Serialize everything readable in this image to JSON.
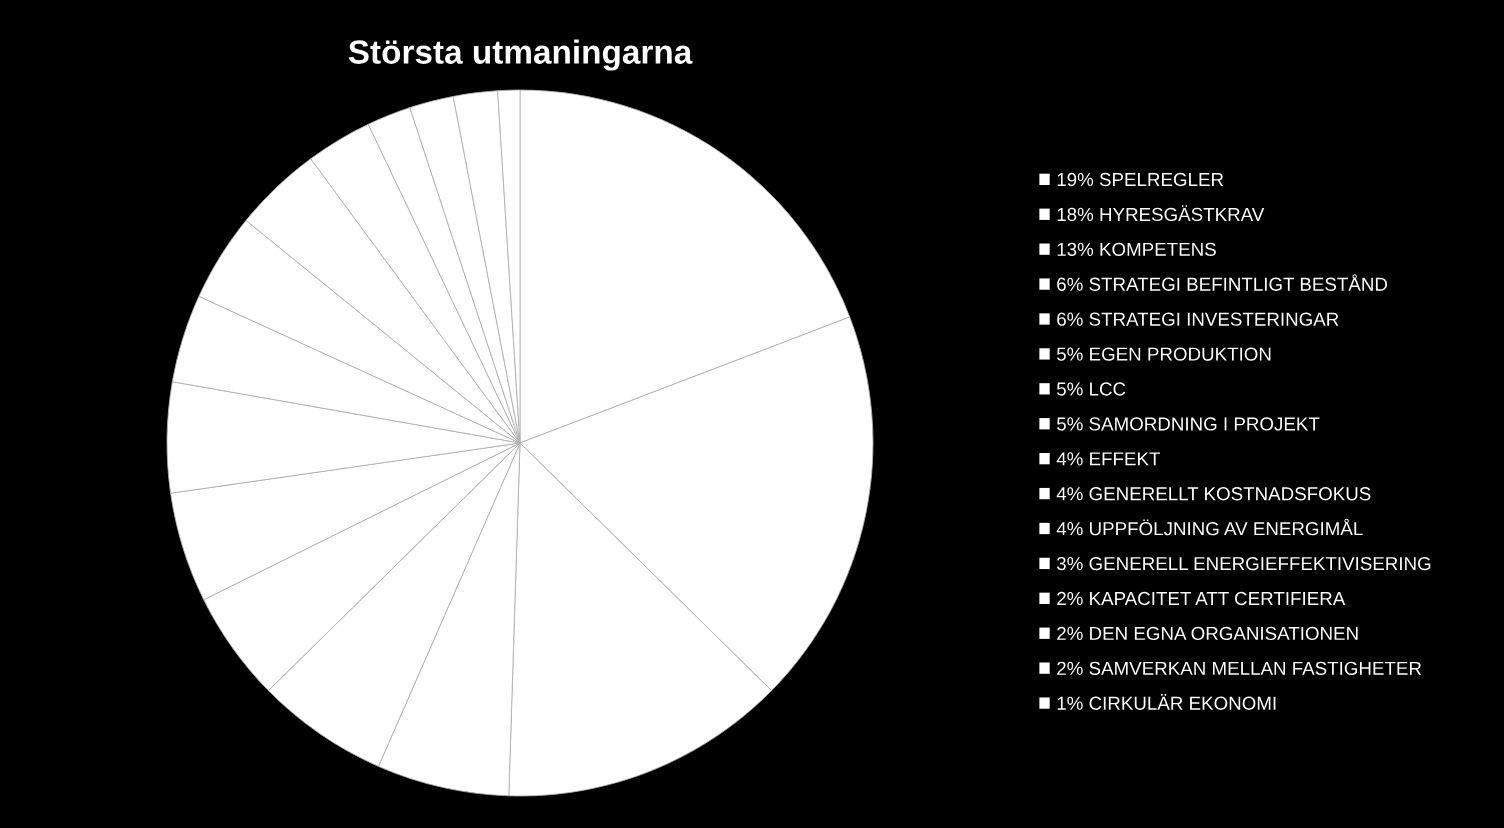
{
  "chart_data": {
    "type": "pie",
    "title": "Största utmaningarna",
    "categories": [
      "19% SPELREGLER",
      "18% HYRESGÄSTKRAV",
      "13% KOMPETENS",
      "6% STRATEGI BEFINTLIGT BESTÅND",
      "6% STRATEGI INVESTERINGAR",
      "5% EGEN PRODUKTION",
      "5% LCC",
      "5% SAMORDNING I PROJEKT",
      "4% EFFEKT",
      "4% GENERELLT KOSTNADSFOKUS",
      "4% UPPFÖLJNING AV ENERGIMÅL",
      "3% GENERELL ENERGIEFFEKTIVISERING",
      "2% KAPACITET ATT CERTIFIERA",
      "2% DEN EGNA ORGANISATIONEN",
      "2% SAMVERKAN MELLAN FASTIGHETER",
      "1% CIRKULÄR EKONOMI"
    ],
    "values": [
      19,
      18,
      13,
      6,
      6,
      5,
      5,
      5,
      4,
      4,
      4,
      3,
      2,
      2,
      2,
      1
    ],
    "colors": [
      "#ffffff",
      "#ffffff",
      "#ffffff",
      "#ffffff",
      "#ffffff",
      "#ffffff",
      "#ffffff",
      "#ffffff",
      "#ffffff",
      "#ffffff",
      "#ffffff",
      "#ffffff",
      "#ffffff",
      "#ffffff",
      "#ffffff",
      "#ffffff"
    ],
    "legend": "right"
  }
}
